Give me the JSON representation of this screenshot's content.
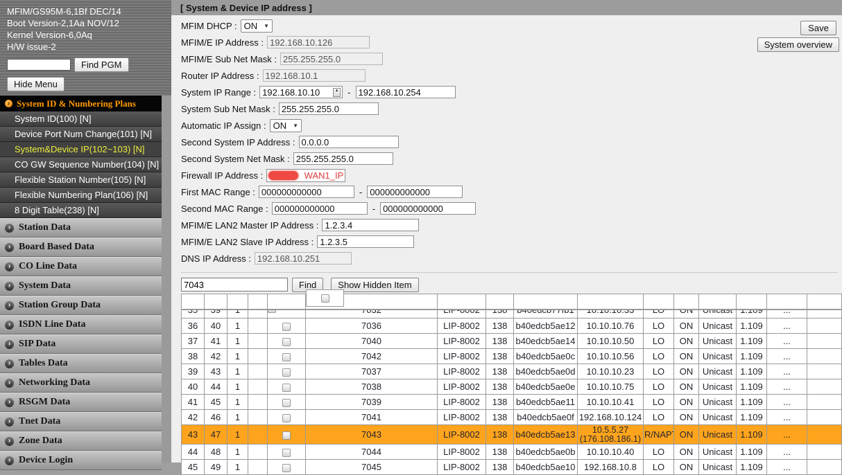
{
  "window": {
    "title": "[ System & Device IP address ]"
  },
  "colors": {
    "highlight_row": "#FFA41C",
    "menu_header_text": "#FF9900",
    "active_item_text": "#EDED3C",
    "annotation_red": "#E03C3C"
  },
  "sidebar": {
    "info_lines": [
      "MFIM/GS95M-6,1Bf DEC/14",
      "Boot Version-2,1Aa NOV/12",
      "Kernel Version-6,0Aq",
      "H/W issue-2"
    ],
    "find_pgm": {
      "input_value": "",
      "button_label": "Find PGM"
    },
    "hide_menu_button": "Hide Menu",
    "menu_header": "System ID & Numbering Plans",
    "menu_items": [
      {
        "label": "System ID(100) [N]",
        "active": false
      },
      {
        "label": "Device Port Num Change(101) [N]",
        "active": false
      },
      {
        "label": "System&Device IP(102~103) [N]",
        "active": true
      },
      {
        "label": "CO GW Sequence Number(104) [N]",
        "active": false
      },
      {
        "label": "Flexible Station Number(105) [N]",
        "active": false
      },
      {
        "label": "Flexible Numbering Plan(106) [N]",
        "active": false
      },
      {
        "label": "8 Digit Table(238) [N]",
        "active": false
      }
    ],
    "sections": [
      "Station Data",
      "Board Based Data",
      "CO Line Data",
      "System Data",
      "Station Group Data",
      "ISDN Line Data",
      "SIP Data",
      "Tables Data",
      "Networking Data",
      "RSGM Data",
      "Tnet Data",
      "Zone Data",
      "Device Login"
    ]
  },
  "toolbar": {
    "save_button": "Save",
    "system_overview_button": "System overview"
  },
  "form": {
    "mfim_dhcp": {
      "label": "MFIM DHCP :",
      "value": "ON"
    },
    "mfim_ip": {
      "label": "MFIM/E IP Address :",
      "value": "192.168.10.126"
    },
    "mfim_mask": {
      "label": "MFIM/E Sub Net Mask :",
      "value": "255.255.255.0"
    },
    "router_ip": {
      "label": "Router IP Address :",
      "value": "192.168.10.1"
    },
    "system_ip_range": {
      "label": "System IP Range :",
      "from": "192.168.10.10",
      "separator": "-",
      "to": "192.168.10.254"
    },
    "system_mask": {
      "label": "System Sub Net Mask :",
      "value": "255.255.255.0"
    },
    "auto_ip_assign": {
      "label": "Automatic IP Assign :",
      "value": "ON"
    },
    "second_system_ip": {
      "label": "Second System IP Address :",
      "value": "0.0.0.0"
    },
    "second_system_mask": {
      "label": "Second System Net Mask :",
      "value": "255.255.255.0"
    },
    "firewall_ip": {
      "label": "Firewall IP Address :",
      "annotation": "WAN1_IP"
    },
    "first_mac_range": {
      "label": "First MAC Range :",
      "from": "000000000000",
      "separator": "-",
      "to": "000000000000"
    },
    "second_mac_range": {
      "label": "Second MAC Range :",
      "from": "000000000000",
      "separator": "-",
      "to": "000000000000"
    },
    "lan2_master": {
      "label": "MFIM/E LAN2 Master IP Address :",
      "value": "1.2.3.4"
    },
    "lan2_slave": {
      "label": "MFIM/E LAN2 Slave IP Address :",
      "value": "1.2.3.5"
    },
    "dns_ip": {
      "label": "DNS IP Address :",
      "value": "192.168.10.251"
    }
  },
  "search": {
    "value": "7043",
    "find_button": "Find",
    "show_hidden_button": "Show Hidden Item"
  },
  "device_table": {
    "rows": [
      {
        "no": "35",
        "port": "39",
        "seq": "1",
        "station": "7032",
        "type": "LIP-8002",
        "code": "138",
        "mac": "b40edcb77fb1",
        "ip": "10.10.10.33",
        "mode": "LO",
        "state": "ON",
        "cast": "Unicast",
        "version": "1.109",
        "more": "...",
        "partial": true
      },
      {
        "no": "36",
        "port": "40",
        "seq": "1",
        "station": "7036",
        "type": "LIP-8002",
        "code": "138",
        "mac": "b40edcb5ae12",
        "ip": "10.10.10.76",
        "mode": "LO",
        "state": "ON",
        "cast": "Unicast",
        "version": "1.109",
        "more": "..."
      },
      {
        "no": "37",
        "port": "41",
        "seq": "1",
        "station": "7040",
        "type": "LIP-8002",
        "code": "138",
        "mac": "b40edcb5ae14",
        "ip": "10.10.10.50",
        "mode": "LO",
        "state": "ON",
        "cast": "Unicast",
        "version": "1.109",
        "more": "..."
      },
      {
        "no": "38",
        "port": "42",
        "seq": "1",
        "station": "7042",
        "type": "LIP-8002",
        "code": "138",
        "mac": "b40edcb5ae0c",
        "ip": "10.10.10.56",
        "mode": "LO",
        "state": "ON",
        "cast": "Unicast",
        "version": "1.109",
        "more": "..."
      },
      {
        "no": "39",
        "port": "43",
        "seq": "1",
        "station": "7037",
        "type": "LIP-8002",
        "code": "138",
        "mac": "b40edcb5ae0d",
        "ip": "10.10.10.23",
        "mode": "LO",
        "state": "ON",
        "cast": "Unicast",
        "version": "1.109",
        "more": "..."
      },
      {
        "no": "40",
        "port": "44",
        "seq": "1",
        "station": "7038",
        "type": "LIP-8002",
        "code": "138",
        "mac": "b40edcb5ae0e",
        "ip": "10.10.10.75",
        "mode": "LO",
        "state": "ON",
        "cast": "Unicast",
        "version": "1.109",
        "more": "..."
      },
      {
        "no": "41",
        "port": "45",
        "seq": "1",
        "station": "7039",
        "type": "LIP-8002",
        "code": "138",
        "mac": "b40edcb5ae11",
        "ip": "10.10.10.41",
        "mode": "LO",
        "state": "ON",
        "cast": "Unicast",
        "version": "1.109",
        "more": "..."
      },
      {
        "no": "42",
        "port": "46",
        "seq": "1",
        "station": "7041",
        "type": "LIP-8002",
        "code": "138",
        "mac": "b40edcb5ae0f",
        "ip": "192.168.10.124",
        "mode": "LO",
        "state": "ON",
        "cast": "Unicast",
        "version": "1.109",
        "more": "..."
      },
      {
        "no": "43",
        "port": "47",
        "seq": "1",
        "station": "7043",
        "type": "LIP-8002",
        "code": "138",
        "mac": "b40edcb5ae13",
        "ip": "10.5.5.27",
        "ip2": "(176.108.186.1)",
        "mode": "R/NAPT",
        "state": "ON",
        "cast": "Unicast",
        "version": "1.109",
        "more": "...",
        "highlight": true
      },
      {
        "no": "44",
        "port": "48",
        "seq": "1",
        "station": "7044",
        "type": "LIP-8002",
        "code": "138",
        "mac": "b40edcb5ae0b",
        "ip": "10.10.10.40",
        "mode": "LO",
        "state": "ON",
        "cast": "Unicast",
        "version": "1.109",
        "more": "..."
      },
      {
        "no": "45",
        "port": "49",
        "seq": "1",
        "station": "7045",
        "type": "LIP-8002",
        "code": "138",
        "mac": "b40edcb5ae10",
        "ip": "192.168.10.8",
        "mode": "LO",
        "state": "ON",
        "cast": "Unicast",
        "version": "1.109",
        "more": "..."
      }
    ]
  }
}
